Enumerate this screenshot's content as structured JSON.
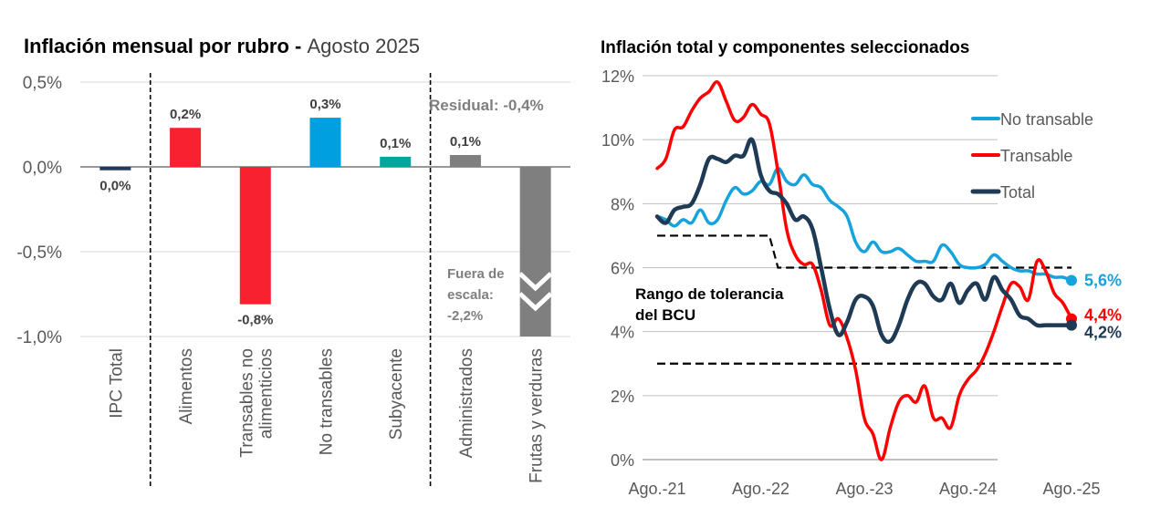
{
  "chart_data": [
    {
      "type": "bar",
      "title_bold": "Inflación mensual por rubro - ",
      "title_regular": "Agosto 2025",
      "xlabel": "",
      "ylabel": "",
      "ylim": [
        -1.0,
        0.5
      ],
      "y_ticks": [
        0.5,
        0.0,
        -0.5,
        -1.0
      ],
      "y_tick_labels": [
        "0,5%",
        "0,0%",
        "-0,5%",
        "-1,0%"
      ],
      "grid": true,
      "categories": [
        "IPC Total",
        "Alimentos",
        "Transables no alimenticios",
        "No transables",
        "Subyacente",
        "Administrados",
        "Frutas y verduras"
      ],
      "category_label_lines": [
        [
          "IPC Total"
        ],
        [
          "Alimentos"
        ],
        [
          "Transables no",
          "alimenticios"
        ],
        [
          "No transables"
        ],
        [
          "Subyacente"
        ],
        [
          "Administrados"
        ],
        [
          "Frutas y verduras"
        ]
      ],
      "values": [
        -0.02,
        0.23,
        -0.81,
        0.29,
        0.06,
        0.07,
        -2.2
      ],
      "data_labels": [
        "0,0%",
        "0,2%",
        "-0,8%",
        "0,3%",
        "0,1%",
        "0,1%",
        ""
      ],
      "colors": [
        "#1f3a5a",
        "#f8212f",
        "#f8212f",
        "#00a0e0",
        "#00a79d",
        "#7f7f7f",
        "#7f7f7f"
      ],
      "group_separators_after": [
        "IPC Total",
        "Subyacente"
      ],
      "annotations": {
        "residual": "Residual: -0,4%",
        "out_of_scale": [
          "Fuera de",
          "escala:",
          "-2,2%"
        ]
      },
      "out_of_scale_category": "Frutas y verduras"
    },
    {
      "type": "line",
      "title": "Inflación total y componentes seleccionados",
      "xlabel": "",
      "ylabel": "",
      "ylim": [
        0,
        12
      ],
      "y_ticks": [
        0,
        2,
        4,
        6,
        8,
        10,
        12
      ],
      "y_tick_labels": [
        "0%",
        "2%",
        "4%",
        "6%",
        "8%",
        "10%",
        "12%"
      ],
      "x_tick_labels": [
        "Ago.-21",
        "Ago.-22",
        "Ago.-23",
        "Ago.-24",
        "Ago.-25"
      ],
      "x_tick_months": [
        0,
        12,
        24,
        36,
        48
      ],
      "grid": true,
      "legend_position": "top-right",
      "months_count": 49,
      "series": [
        {
          "name": "No transable",
          "color": "#16a3dc",
          "end_label": "5,6%",
          "values": [
            7.6,
            7.5,
            7.3,
            7.5,
            7.4,
            7.8,
            7.4,
            7.5,
            8.1,
            8.5,
            8.3,
            8.4,
            8.7,
            8.6,
            9.1,
            8.7,
            8.6,
            8.9,
            8.6,
            8.5,
            8.1,
            7.9,
            7.6,
            6.8,
            6.5,
            6.8,
            6.5,
            6.5,
            6.6,
            6.4,
            6.2,
            6.2,
            6.2,
            6.7,
            6.5,
            6.1,
            6.0,
            6.0,
            6.1,
            6.4,
            6.2,
            6.0,
            5.9,
            5.9,
            5.8,
            5.8,
            5.7,
            5.7,
            5.6
          ]
        },
        {
          "name": "Transable",
          "color": "#ff0000",
          "end_label": "4,4%",
          "values": [
            9.1,
            9.4,
            10.3,
            10.4,
            10.9,
            11.3,
            11.5,
            11.8,
            11.2,
            10.6,
            10.7,
            11.1,
            10.8,
            10.5,
            9.0,
            7.2,
            6.4,
            6.1,
            6.1,
            5.3,
            4.2,
            4.4,
            3.8,
            2.8,
            1.3,
            0.8,
            0.0,
            1.0,
            1.8,
            2.0,
            1.8,
            2.3,
            1.3,
            1.3,
            1.0,
            2.0,
            2.5,
            2.8,
            3.3,
            4.0,
            4.8,
            5.5,
            5.4,
            5.0,
            6.2,
            5.9,
            5.2,
            4.9,
            4.4
          ]
        },
        {
          "name": "Total",
          "color": "#1f3a55",
          "end_label": "4,2%",
          "values": [
            7.6,
            7.4,
            7.8,
            7.9,
            8.0,
            8.6,
            9.4,
            9.4,
            9.3,
            9.5,
            9.5,
            10.0,
            8.9,
            8.4,
            8.3,
            8.0,
            7.5,
            7.6,
            7.2,
            6.0,
            4.7,
            3.9,
            4.3,
            5.0,
            5.1,
            4.8,
            3.9,
            3.7,
            4.2,
            5.0,
            5.5,
            5.5,
            5.1,
            5.0,
            5.5,
            4.9,
            5.3,
            5.5,
            5.0,
            5.7,
            5.3,
            5.0,
            4.5,
            4.4,
            4.2,
            4.2,
            4.2,
            4.2,
            4.2
          ]
        }
      ],
      "tolerance_band": {
        "label_lines": [
          "Rango de tolerancia",
          "del BCU"
        ],
        "upper": [
          {
            "from": 0,
            "to": 13,
            "value": 7.0
          },
          {
            "from": 14,
            "to": 48,
            "value": 6.0
          }
        ],
        "lower": [
          {
            "from": 0,
            "to": 48,
            "value": 3.0
          }
        ]
      }
    }
  ]
}
